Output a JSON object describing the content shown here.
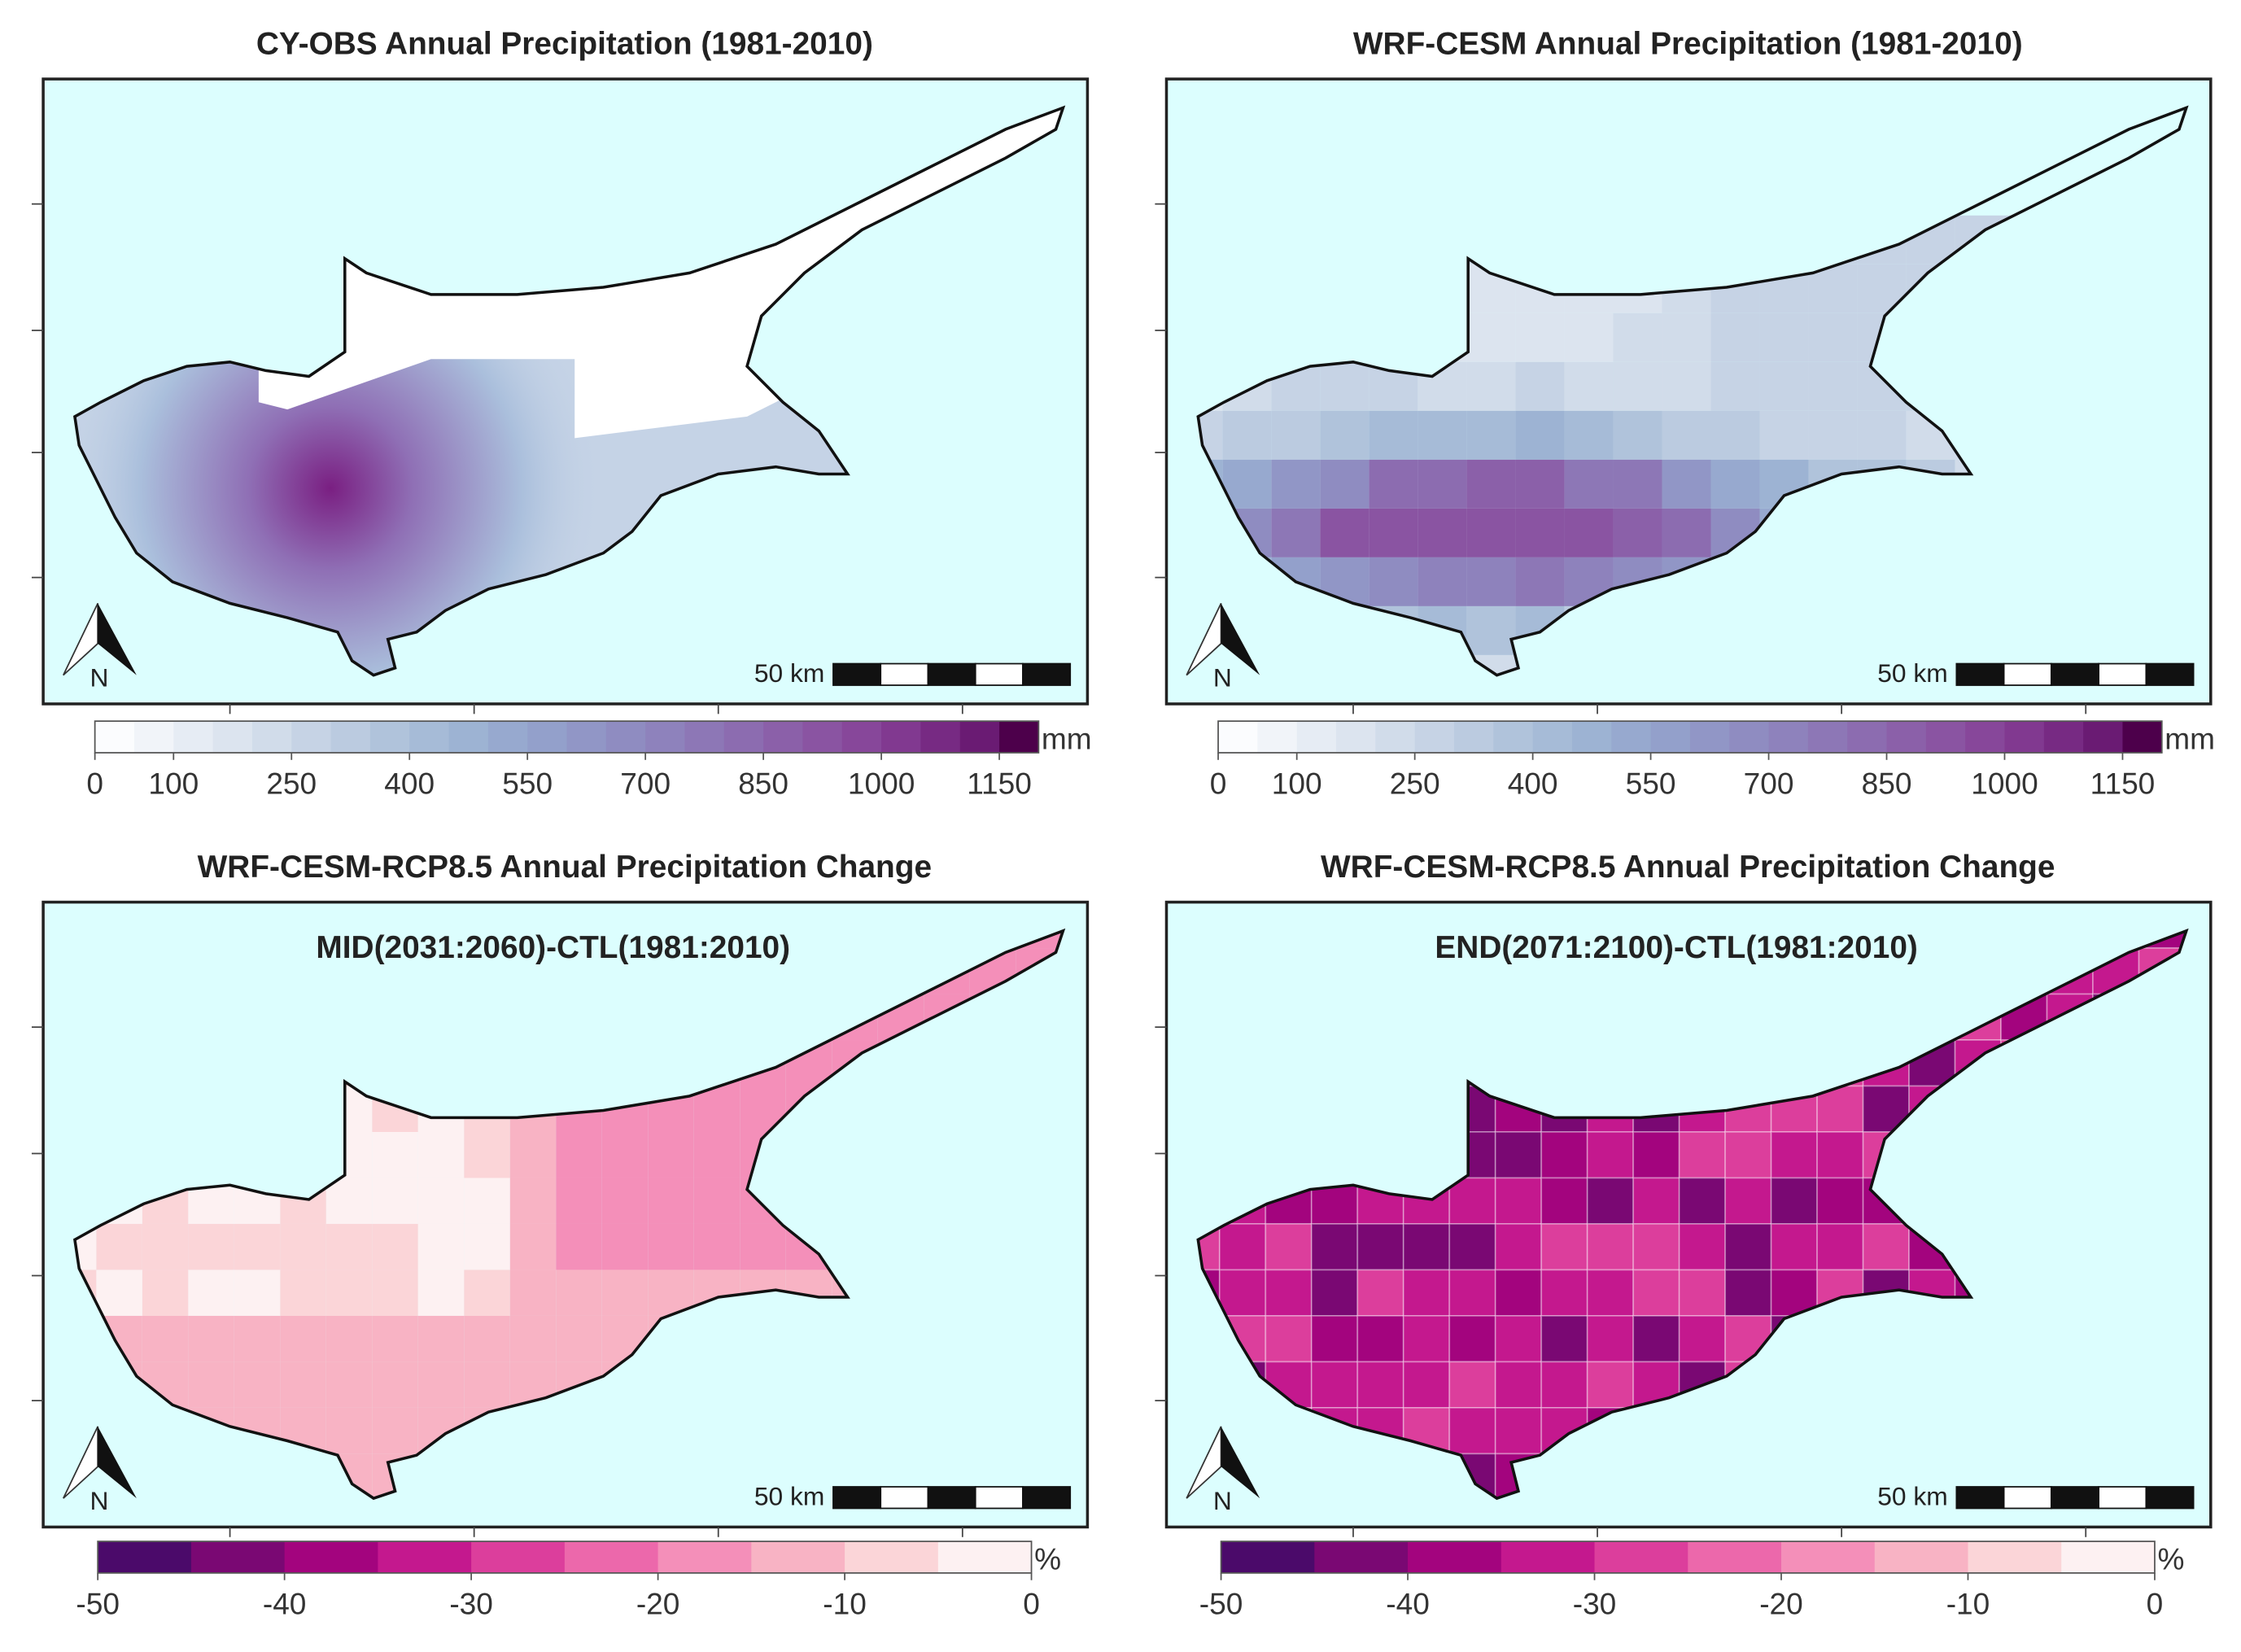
{
  "panels": [
    {
      "title": "CY-OBS Annual Precipitation (1981-2010)",
      "scale_label": "50 km",
      "north_label": "N",
      "colorbar": {
        "range": [
          0,
          1200
        ],
        "ticks": [
          0,
          100,
          250,
          400,
          550,
          700,
          850,
          1000,
          1150
        ],
        "unit": "mm",
        "colors": [
          "#fbfcfe",
          "#f1f4f9",
          "#e6ecf4",
          "#dce4ef",
          "#d1dcea",
          "#c6d3e5",
          "#bbcbe0",
          "#b0c3db",
          "#a6bbd7",
          "#9db3d3",
          "#97a9cf",
          "#93a0cb",
          "#9196c6",
          "#8f8cc1",
          "#8e82bc",
          "#8d77b6",
          "#8c6cb0",
          "#8b60a9",
          "#8a54a2",
          "#87479a",
          "#813990",
          "#772a83",
          "#6a1b73",
          "#4d004b"
        ]
      }
    },
    {
      "title": "WRF-CESM Annual Precipitation (1981-2010)",
      "scale_label": "50 km",
      "north_label": "N",
      "colorbar": {
        "range": [
          0,
          1200
        ],
        "ticks": [
          0,
          100,
          250,
          400,
          550,
          700,
          850,
          1000,
          1150
        ],
        "unit": "mm",
        "colors": [
          "#fbfcfe",
          "#f1f4f9",
          "#e6ecf4",
          "#dce4ef",
          "#d1dcea",
          "#c6d3e5",
          "#bbcbe0",
          "#b0c3db",
          "#a6bbd7",
          "#9db3d3",
          "#97a9cf",
          "#93a0cb",
          "#9196c6",
          "#8f8cc1",
          "#8e82bc",
          "#8d77b6",
          "#8c6cb0",
          "#8b60a9",
          "#8a54a2",
          "#87479a",
          "#813990",
          "#772a83",
          "#6a1b73",
          "#4d004b"
        ]
      }
    },
    {
      "title": "WRF-CESM-RCP8.5 Annual Precipitation Change",
      "subtitle": "MID(2031:2060)-CTL(1981:2010)",
      "scale_label": "50 km",
      "north_label": "N",
      "colorbar": {
        "range": [
          -50,
          0
        ],
        "ticks": [
          -50,
          -40,
          -30,
          -20,
          -10,
          0
        ],
        "unit": "%",
        "colors": [
          "#4b0a6a",
          "#7a0873",
          "#a3047e",
          "#c4188e",
          "#dc3e9c",
          "#ec68ab",
          "#f48fb9",
          "#f8b3c4",
          "#fbd5d8",
          "#fdf1f2"
        ]
      }
    },
    {
      "title": "WRF-CESM-RCP8.5 Annual Precipitation Change",
      "subtitle": "END(2071:2100)-CTL(1981:2010)",
      "scale_label": "50 km",
      "north_label": "N",
      "colorbar": {
        "range": [
          -50,
          0
        ],
        "ticks": [
          -50,
          -40,
          -30,
          -20,
          -10,
          0
        ],
        "unit": "%",
        "colors": [
          "#4b0a6a",
          "#7a0873",
          "#a3047e",
          "#c4188e",
          "#dc3e9c",
          "#ec68ab",
          "#f48fb9",
          "#f8b3c4",
          "#fbd5d8",
          "#fdf1f2"
        ]
      }
    }
  ]
}
